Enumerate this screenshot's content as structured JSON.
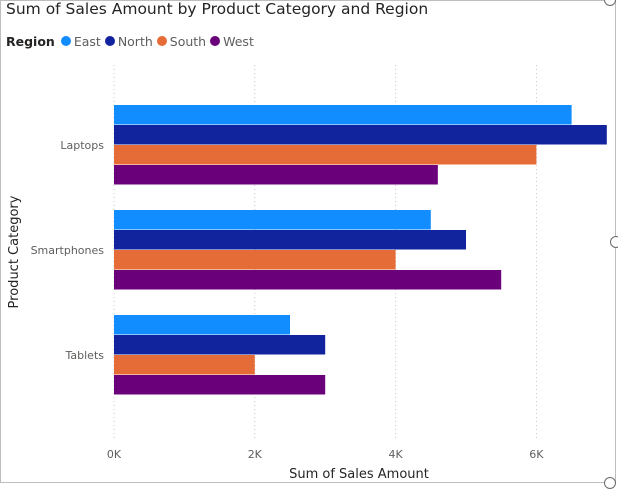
{
  "chart_data": {
    "type": "bar",
    "orientation": "horizontal",
    "title": "Sum of Sales Amount by Product Category and Region",
    "xlabel": "Sum of Sales Amount",
    "ylabel": "Product Category",
    "legend_title": "Region",
    "legend_position": "top-left",
    "categories": [
      "Laptops",
      "Smartphones",
      "Tablets"
    ],
    "series": [
      {
        "name": "East",
        "color": "#118dff",
        "values": [
          6500,
          4500,
          2500
        ]
      },
      {
        "name": "North",
        "color": "#12239e",
        "values": [
          7000,
          5000,
          3000
        ]
      },
      {
        "name": "South",
        "color": "#e66c37",
        "values": [
          6000,
          4000,
          2000
        ]
      },
      {
        "name": "West",
        "color": "#6b007b",
        "values": [
          4600,
          5500,
          3000
        ]
      }
    ],
    "xlim": [
      0,
      7000
    ],
    "xticks": [
      0,
      2000,
      4000,
      6000
    ],
    "xtick_labels": [
      "0K",
      "2K",
      "4K",
      "6K"
    ],
    "grid": "vertical-dotted"
  }
}
